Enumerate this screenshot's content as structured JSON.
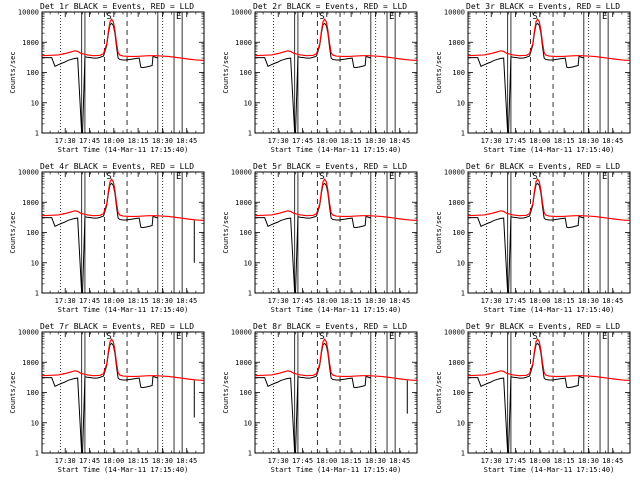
{
  "figure": {
    "panels": [
      {
        "title": "Det 1r BLACK = Events, RED = LLD"
      },
      {
        "title": "Det 2r BLACK = Events, RED = LLD"
      },
      {
        "title": "Det 3r BLACK = Events, RED = LLD"
      },
      {
        "title": "Det 4r BLACK = Events, RED = LLD"
      },
      {
        "title": "Det 5r BLACK = Events, RED = LLD"
      },
      {
        "title": "Det 6r BLACK = Events, RED = LLD"
      },
      {
        "title": "Det 7r BLACK = Events, RED = LLD"
      },
      {
        "title": "Det 8r BLACK = Events, RED = LLD"
      },
      {
        "title": "Det 9r BLACK = Events, RED = LLD"
      }
    ]
  },
  "chart_data": {
    "type": "line",
    "panel_count": 9,
    "layout": "3x3 grid",
    "xlabel": "Start Time (14-Mar-11 17:15:40)",
    "ylabel": "Counts/sec",
    "x_unit": "minutes after 17:15:40",
    "xlim": [
      0,
      100
    ],
    "xticks": [
      {
        "label": "17:30",
        "value": 14.33
      },
      {
        "label": "17:45",
        "value": 29.33
      },
      {
        "label": "18:00",
        "value": 44.33
      },
      {
        "label": "18:15",
        "value": 59.33
      },
      {
        "label": "18:30",
        "value": 74.33
      },
      {
        "label": "18:45",
        "value": 89.33
      }
    ],
    "yscale": "log",
    "ylim": [
      1,
      10000
    ],
    "yticks": [
      {
        "label": "1",
        "value": 1
      },
      {
        "label": "10",
        "value": 10
      },
      {
        "label": "100",
        "value": 100
      },
      {
        "label": "1000",
        "value": 1000
      },
      {
        "label": "10000",
        "value": 10000
      }
    ],
    "colors": {
      "events": "#000000",
      "lld": "#ff0000"
    },
    "vertical_markers": [
      {
        "x": 11.5,
        "style": "dotted",
        "label": ""
      },
      {
        "x": 24.5,
        "style": "solid",
        "label": ""
      },
      {
        "x": 26.5,
        "style": "solid",
        "label": ""
      },
      {
        "x": 38.5,
        "style": "dashed",
        "label": "S"
      },
      {
        "x": 52.5,
        "style": "dashed",
        "label": ""
      },
      {
        "x": 71.5,
        "style": "solid",
        "label": ""
      },
      {
        "x": 74.5,
        "style": "dotted",
        "label": ""
      },
      {
        "x": 81.5,
        "style": "solid",
        "label": "E"
      },
      {
        "x": 86.5,
        "style": "solid",
        "label": ""
      }
    ],
    "series": [
      {
        "name": "Events",
        "x": [
          0,
          6,
          8,
          10,
          12,
          14,
          16,
          18,
          20,
          22,
          24.5,
          25,
          26.5,
          28,
          30,
          32,
          34,
          36,
          38,
          40,
          41,
          42,
          43,
          44,
          45,
          46,
          47,
          48,
          50,
          52,
          54,
          56,
          58,
          60,
          61,
          62,
          64,
          66,
          68,
          68.5,
          70,
          71.5
        ],
        "y": [
          310,
          310,
          160,
          180,
          200,
          220,
          250,
          270,
          290,
          300,
          1,
          1,
          330,
          320,
          310,
          300,
          300,
          320,
          350,
          800,
          2000,
          3800,
          4200,
          3600,
          2000,
          700,
          300,
          270,
          260,
          260,
          270,
          280,
          290,
          300,
          150,
          145,
          150,
          160,
          170,
          340,
          320,
          300
        ]
      },
      {
        "name": "LLD",
        "x": [
          0,
          10,
          14,
          18,
          20,
          22,
          24,
          28,
          32,
          36,
          38,
          40,
          41,
          42,
          43,
          44,
          45,
          46,
          47,
          48,
          50,
          54,
          58,
          62,
          66,
          70,
          74,
          78,
          82,
          86,
          90,
          95,
          100
        ],
        "y": [
          360,
          380,
          420,
          480,
          520,
          500,
          430,
          380,
          360,
          370,
          420,
          900,
          2300,
          4800,
          5800,
          4800,
          2500,
          950,
          450,
          380,
          350,
          340,
          340,
          350,
          360,
          360,
          350,
          340,
          320,
          300,
          280,
          260,
          250
        ]
      }
    ],
    "tail_drops": [
      {
        "panel": 4,
        "x": 94,
        "y": 10
      },
      {
        "panel": 7,
        "x": 94,
        "y": 15
      },
      {
        "panel": 8,
        "x": 94,
        "y": 20
      }
    ]
  }
}
